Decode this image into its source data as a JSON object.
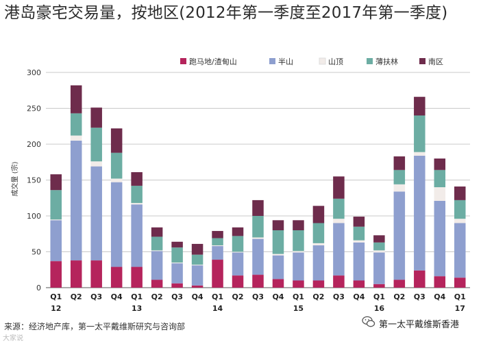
{
  "title": "港岛豪宅交易量，按地区(2012年第一季度至2017年第一季度)",
  "source": "来源：经济地产库，第一太平戴维斯研究与咨询部",
  "watermark": "第一太平戴维斯香港",
  "watermark_left": "大家说",
  "chart_data": {
    "type": "bar",
    "stacked": true,
    "title": "港岛豪宅交易量，按地区(2012年第一季度至2017年第一季度)",
    "xlabel": "",
    "ylabel": "成交量 (宗)",
    "ylim": [
      0,
      300
    ],
    "yticks": [
      0,
      50,
      100,
      150,
      200,
      250,
      300
    ],
    "grid": true,
    "legend_position": "top",
    "categories": [
      "Q1",
      "Q2",
      "Q3",
      "Q4",
      "Q1",
      "Q2",
      "Q3",
      "Q4",
      "Q1",
      "Q2",
      "Q3",
      "Q4",
      "Q1",
      "Q2",
      "Q3",
      "Q4",
      "Q1",
      "Q2",
      "Q3",
      "Q4",
      "Q1"
    ],
    "years": [
      {
        "label": "12",
        "index": 0
      },
      {
        "label": "13",
        "index": 4
      },
      {
        "label": "14",
        "index": 8
      },
      {
        "label": "15",
        "index": 12
      },
      {
        "label": "16",
        "index": 16
      },
      {
        "label": "17",
        "index": 20
      }
    ],
    "series": [
      {
        "name": "跑马地/渣甸山",
        "color": "#b5245c",
        "values": [
          37,
          38,
          38,
          29,
          29,
          11,
          6,
          3,
          39,
          17,
          18,
          12,
          10,
          10,
          17,
          10,
          5,
          11,
          24,
          16,
          14
        ]
      },
      {
        "name": "半山",
        "color": "#8e9fcf",
        "values": [
          57,
          167,
          131,
          118,
          87,
          40,
          28,
          28,
          19,
          32,
          50,
          33,
          39,
          49,
          73,
          53,
          44,
          123,
          160,
          105,
          76
        ]
      },
      {
        "name": "山顶",
        "color": "#f2ece9",
        "values": [
          1,
          7,
          7,
          5,
          2,
          1,
          1,
          1,
          1,
          1,
          2,
          2,
          2,
          3,
          6,
          3,
          3,
          10,
          5,
          19,
          6
        ]
      },
      {
        "name": "薄扶林",
        "color": "#6cada3",
        "values": [
          41,
          31,
          47,
          36,
          24,
          19,
          21,
          14,
          10,
          22,
          30,
          33,
          29,
          28,
          28,
          19,
          11,
          20,
          51,
          24,
          26
        ]
      },
      {
        "name": "南区",
        "color": "#6e2c4c",
        "values": [
          22,
          39,
          28,
          34,
          19,
          13,
          8,
          15,
          10,
          12,
          22,
          14,
          14,
          24,
          31,
          14,
          10,
          19,
          26,
          16,
          19
        ]
      }
    ]
  }
}
